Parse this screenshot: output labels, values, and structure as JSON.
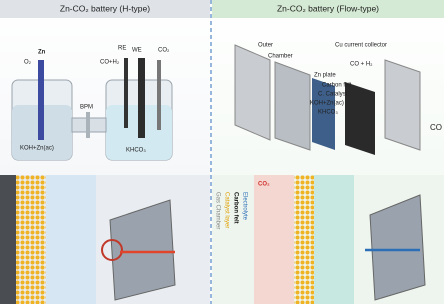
{
  "panels": [
    {
      "title": "Zn-CO₂ battery (H-type)",
      "labels": [
        "O₂",
        "Zn",
        "RE",
        "WE",
        "CO+H₂",
        "CO₂",
        "BPM",
        "KOH+Zn(ac)",
        "KHCO₃"
      ]
    },
    {
      "title": "Zn-CO₂ battery (Flow-type)",
      "labels": [
        "Outer",
        "Chamber",
        "Cu current collector",
        "CO + H₂",
        "Zn plate",
        "Carbon felt",
        "C. Catalyst",
        "KOH+Zn(ac)",
        "KHCO₃",
        "CO",
        "CO₂"
      ],
      "layers": [
        "Gas Chamber",
        "Catalyst layer",
        "Carbon felt",
        "Electrolyte"
      ]
    }
  ]
}
